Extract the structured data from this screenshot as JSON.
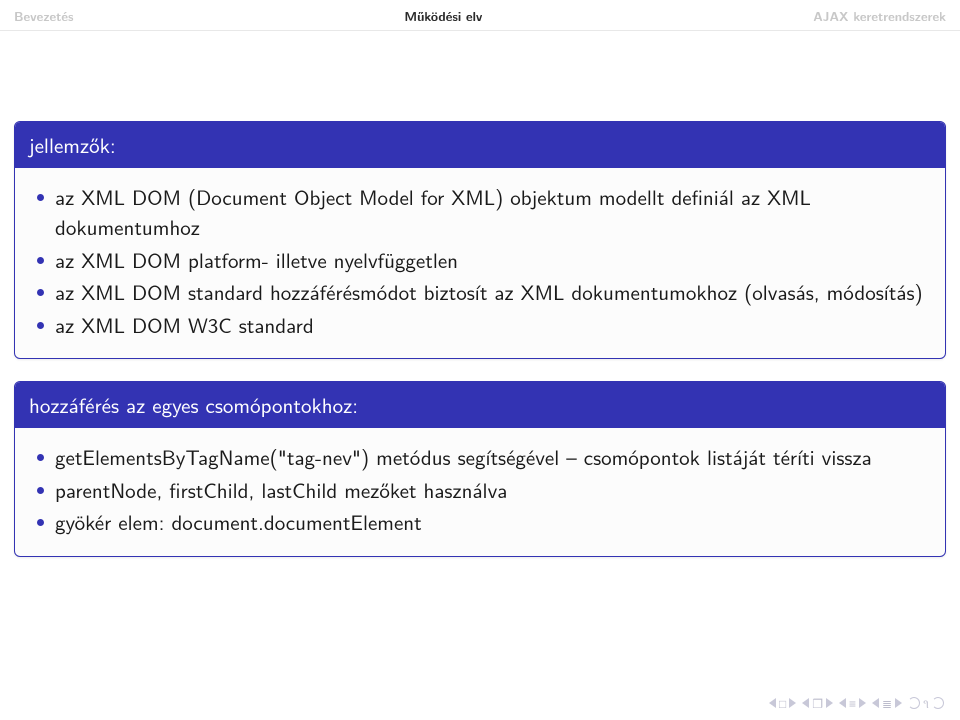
{
  "nav": {
    "left": "Bevezetés",
    "center": "Működési elv",
    "right": "AJAX keretrendszerek"
  },
  "block1": {
    "title": "jellemzők:",
    "items": [
      "az XML DOM (Document Object Model for XML) objektum modellt definiál az XML dokumentumhoz",
      "az XML DOM platform- illetve nyelvfüggetlen",
      "az XML DOM standard hozzáférésmódot biztosít az XML dokumentumokhoz (olvasás, módosítás)",
      "az XML DOM W3C standard"
    ]
  },
  "block2": {
    "title": "hozzáférés az egyes csomópontokhoz:",
    "items": [
      "getElementsByTagName(\"tag-nev\") metódus segítségével – csomópontok listáját téríti vissza",
      "parentNode, firstChild, lastChild mezőket használva",
      "gyökér elem: document.documentElement"
    ]
  },
  "colors": {
    "accent": "#3333b3",
    "nav_inactive": "#c8c8c8",
    "nav_active": "#2a2a2a",
    "bg": "#ffffff"
  }
}
